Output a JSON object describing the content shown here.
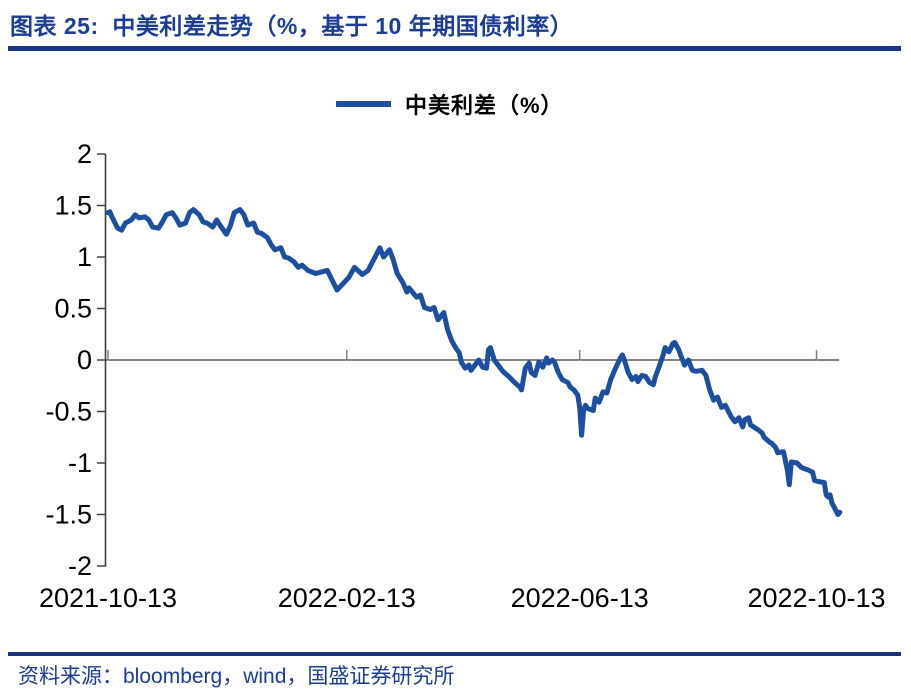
{
  "header": {
    "title": "图表 25:  中美利差走势（%，基于 10 年期国债利率）"
  },
  "footer": {
    "source": "资料来源：bloomberg，wind，国盛证券研究所"
  },
  "colors": {
    "title_navy": "#1C3C96",
    "rule_navy": "#16347F",
    "line_blue": "#1D4FA0",
    "axis": "#3A3A3A",
    "x_tick_gray": "#7F7F7F",
    "tick_text": "#000000"
  },
  "chart_data": {
    "type": "line",
    "title": "",
    "legend": [
      "中美利差（%）"
    ],
    "legend_position": "top-center",
    "grid": false,
    "ylim": [
      -2,
      2
    ],
    "y_tick_step": 0.5,
    "y_ticks": [
      "2",
      "1.5",
      "1",
      "0.5",
      "0",
      "-0.5",
      "-1",
      "-1.5",
      "-2"
    ],
    "x_ticks": [
      "2021-10-13",
      "2022-02-13",
      "2022-06-13",
      "2022-10-13"
    ],
    "x_range": [
      "2021-10-13",
      "2022-10-25"
    ],
    "zero_axis_line": true,
    "series": [
      {
        "name": "中美利差（%）",
        "color": "#1D4FA0",
        "points": [
          [
            "2021-10-13",
            1.43
          ],
          [
            "2021-10-14",
            1.44
          ],
          [
            "2021-10-15",
            1.39
          ],
          [
            "2021-10-18",
            1.28
          ],
          [
            "2021-10-20",
            1.26
          ],
          [
            "2021-10-22",
            1.33
          ],
          [
            "2021-10-25",
            1.36
          ],
          [
            "2021-10-27",
            1.41
          ],
          [
            "2021-10-29",
            1.38
          ],
          [
            "2021-11-01",
            1.39
          ],
          [
            "2021-11-03",
            1.36
          ],
          [
            "2021-11-05",
            1.29
          ],
          [
            "2021-11-08",
            1.28
          ],
          [
            "2021-11-10",
            1.34
          ],
          [
            "2021-11-12",
            1.41
          ],
          [
            "2021-11-15",
            1.43
          ],
          [
            "2021-11-17",
            1.38
          ],
          [
            "2021-11-19",
            1.31
          ],
          [
            "2021-11-22",
            1.33
          ],
          [
            "2021-11-24",
            1.43
          ],
          [
            "2021-11-26",
            1.46
          ],
          [
            "2021-11-29",
            1.41
          ],
          [
            "2021-12-01",
            1.34
          ],
          [
            "2021-12-03",
            1.33
          ],
          [
            "2021-12-06",
            1.29
          ],
          [
            "2021-12-08",
            1.36
          ],
          [
            "2021-12-10",
            1.3
          ],
          [
            "2021-12-13",
            1.22
          ],
          [
            "2021-12-15",
            1.3
          ],
          [
            "2021-12-17",
            1.43
          ],
          [
            "2021-12-20",
            1.46
          ],
          [
            "2021-12-22",
            1.41
          ],
          [
            "2021-12-24",
            1.31
          ],
          [
            "2021-12-27",
            1.33
          ],
          [
            "2021-12-29",
            1.24
          ],
          [
            "2021-12-31",
            1.23
          ],
          [
            "2022-01-03",
            1.19
          ],
          [
            "2022-01-05",
            1.12
          ],
          [
            "2022-01-07",
            1.07
          ],
          [
            "2022-01-10",
            1.09
          ],
          [
            "2022-01-12",
            1.0
          ],
          [
            "2022-01-14",
            0.99
          ],
          [
            "2022-01-17",
            0.95
          ],
          [
            "2022-01-19",
            0.9
          ],
          [
            "2022-01-21",
            0.92
          ],
          [
            "2022-01-24",
            0.87
          ],
          [
            "2022-01-28",
            0.84
          ],
          [
            "2022-02-03",
            0.87
          ],
          [
            "2022-02-08",
            0.68
          ],
          [
            "2022-02-11",
            0.74
          ],
          [
            "2022-02-14",
            0.8
          ],
          [
            "2022-02-17",
            0.9
          ],
          [
            "2022-02-21",
            0.83
          ],
          [
            "2022-02-24",
            0.87
          ],
          [
            "2022-03-01",
            1.05
          ],
          [
            "2022-03-02",
            1.09
          ],
          [
            "2022-03-04",
            1.0
          ],
          [
            "2022-03-07",
            1.07
          ],
          [
            "2022-03-09",
            0.97
          ],
          [
            "2022-03-11",
            0.84
          ],
          [
            "2022-03-14",
            0.75
          ],
          [
            "2022-03-16",
            0.66
          ],
          [
            "2022-03-17",
            0.7
          ],
          [
            "2022-03-21",
            0.61
          ],
          [
            "2022-03-23",
            0.63
          ],
          [
            "2022-03-25",
            0.51
          ],
          [
            "2022-03-28",
            0.49
          ],
          [
            "2022-03-30",
            0.51
          ],
          [
            "2022-04-01",
            0.39
          ],
          [
            "2022-04-04",
            0.46
          ],
          [
            "2022-04-06",
            0.29
          ],
          [
            "2022-04-08",
            0.19
          ],
          [
            "2022-04-10",
            0.12
          ],
          [
            "2022-04-12",
            0.07
          ],
          [
            "2022-04-13",
            -0.02
          ],
          [
            "2022-04-15",
            -0.08
          ],
          [
            "2022-04-17",
            -0.05
          ],
          [
            "2022-04-18",
            -0.1
          ],
          [
            "2022-04-20",
            -0.05
          ],
          [
            "2022-04-22",
            0.0
          ],
          [
            "2022-04-24",
            -0.07
          ],
          [
            "2022-04-26",
            -0.08
          ],
          [
            "2022-04-27",
            0.1
          ],
          [
            "2022-04-28",
            0.12
          ],
          [
            "2022-04-30",
            0.0
          ],
          [
            "2022-05-02",
            -0.05
          ],
          [
            "2022-05-04",
            -0.1
          ],
          [
            "2022-05-05",
            -0.12
          ],
          [
            "2022-05-08",
            -0.17
          ],
          [
            "2022-05-10",
            -0.21
          ],
          [
            "2022-05-13",
            -0.26
          ],
          [
            "2022-05-14",
            -0.29
          ],
          [
            "2022-05-16",
            -0.08
          ],
          [
            "2022-05-18",
            -0.03
          ],
          [
            "2022-05-19",
            -0.12
          ],
          [
            "2022-05-21",
            -0.15
          ],
          [
            "2022-05-23",
            -0.02
          ],
          [
            "2022-05-25",
            -0.07
          ],
          [
            "2022-05-27",
            0.02
          ],
          [
            "2022-05-28",
            -0.03
          ],
          [
            "2022-05-30",
            0.0
          ],
          [
            "2022-05-31",
            -0.02
          ],
          [
            "2022-06-02",
            -0.12
          ],
          [
            "2022-06-04",
            -0.19
          ],
          [
            "2022-06-07",
            -0.22
          ],
          [
            "2022-06-08",
            -0.26
          ],
          [
            "2022-06-10",
            -0.29
          ],
          [
            "2022-06-12",
            -0.34
          ],
          [
            "2022-06-13",
            -0.46
          ],
          [
            "2022-06-14",
            -0.73
          ],
          [
            "2022-06-15",
            -0.49
          ],
          [
            "2022-06-16",
            -0.44
          ],
          [
            "2022-06-17",
            -0.47
          ],
          [
            "2022-06-20",
            -0.49
          ],
          [
            "2022-06-21",
            -0.37
          ],
          [
            "2022-06-23",
            -0.41
          ],
          [
            "2022-06-25",
            -0.31
          ],
          [
            "2022-06-27",
            -0.32
          ],
          [
            "2022-06-29",
            -0.19
          ],
          [
            "2022-07-01",
            -0.1
          ],
          [
            "2022-07-04",
            0.02
          ],
          [
            "2022-07-05",
            0.05
          ],
          [
            "2022-07-06",
            0.0
          ],
          [
            "2022-07-08",
            -0.12
          ],
          [
            "2022-07-10",
            -0.19
          ],
          [
            "2022-07-12",
            -0.16
          ],
          [
            "2022-07-13",
            -0.21
          ],
          [
            "2022-07-15",
            -0.15
          ],
          [
            "2022-07-17",
            -0.16
          ],
          [
            "2022-07-19",
            -0.22
          ],
          [
            "2022-07-21",
            -0.24
          ],
          [
            "2022-07-22",
            -0.16
          ],
          [
            "2022-07-24",
            -0.06
          ],
          [
            "2022-07-26",
            0.05
          ],
          [
            "2022-07-27",
            0.12
          ],
          [
            "2022-07-29",
            0.08
          ],
          [
            "2022-07-31",
            0.16
          ],
          [
            "2022-08-01",
            0.17
          ],
          [
            "2022-08-03",
            0.1
          ],
          [
            "2022-08-04",
            0.05
          ],
          [
            "2022-08-05",
            0.0
          ],
          [
            "2022-08-06",
            -0.05
          ],
          [
            "2022-08-08",
            0.0
          ],
          [
            "2022-08-10",
            -0.1
          ],
          [
            "2022-08-12",
            -0.11
          ],
          [
            "2022-08-15",
            -0.1
          ],
          [
            "2022-08-17",
            -0.15
          ],
          [
            "2022-08-19",
            -0.29
          ],
          [
            "2022-08-21",
            -0.39
          ],
          [
            "2022-08-23",
            -0.36
          ],
          [
            "2022-08-25",
            -0.46
          ],
          [
            "2022-08-27",
            -0.44
          ],
          [
            "2022-08-30",
            -0.55
          ],
          [
            "2022-09-01",
            -0.6
          ],
          [
            "2022-09-03",
            -0.56
          ],
          [
            "2022-09-05",
            -0.65
          ],
          [
            "2022-09-06",
            -0.58
          ],
          [
            "2022-09-08",
            -0.56
          ],
          [
            "2022-09-09",
            -0.63
          ],
          [
            "2022-09-13",
            -0.68
          ],
          [
            "2022-09-15",
            -0.71
          ],
          [
            "2022-09-16",
            -0.75
          ],
          [
            "2022-09-19",
            -0.8
          ],
          [
            "2022-09-20",
            -0.81
          ],
          [
            "2022-09-22",
            -0.85
          ],
          [
            "2022-09-23",
            -0.9
          ],
          [
            "2022-09-26",
            -0.89
          ],
          [
            "2022-09-28",
            -1.07
          ],
          [
            "2022-09-29",
            -1.21
          ],
          [
            "2022-09-30",
            -0.99
          ],
          [
            "2022-10-03",
            -1.0
          ],
          [
            "2022-10-05",
            -1.04
          ],
          [
            "2022-10-06",
            -1.05
          ],
          [
            "2022-10-09",
            -1.07
          ],
          [
            "2022-10-11",
            -1.09
          ],
          [
            "2022-10-12",
            -1.17
          ],
          [
            "2022-10-14",
            -1.18
          ],
          [
            "2022-10-17",
            -1.19
          ],
          [
            "2022-10-18",
            -1.31
          ],
          [
            "2022-10-19",
            -1.33
          ],
          [
            "2022-10-20",
            -1.31
          ],
          [
            "2022-10-21",
            -1.39
          ],
          [
            "2022-10-23",
            -1.46
          ],
          [
            "2022-10-24",
            -1.5
          ],
          [
            "2022-10-25",
            -1.48
          ]
        ]
      }
    ]
  }
}
